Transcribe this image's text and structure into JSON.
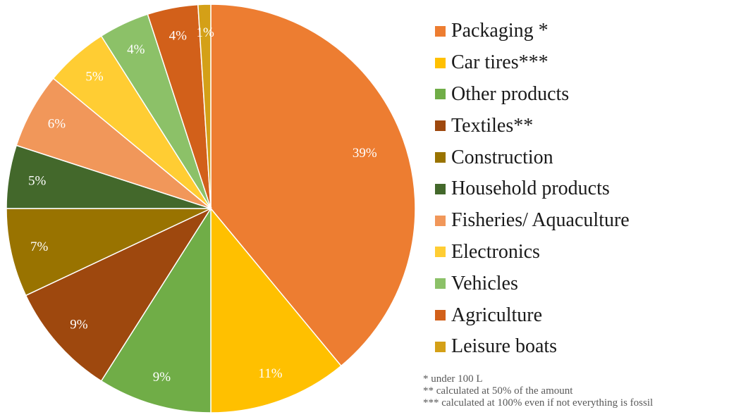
{
  "chart_data": {
    "type": "pie",
    "slices": [
      {
        "label": "Packaging *",
        "value": 39,
        "value_label": "39%",
        "color": "#ED7D31"
      },
      {
        "label": "Car tires***",
        "value": 11,
        "value_label": "11%",
        "color": "#FFC000"
      },
      {
        "label": "Other products",
        "value": 9,
        "value_label": "9%",
        "color": "#70AD47"
      },
      {
        "label": "Textiles**",
        "value": 9,
        "value_label": "9%",
        "color": "#9E480E"
      },
      {
        "label": "Construction",
        "value": 7,
        "value_label": "7%",
        "color": "#997300"
      },
      {
        "label": "Household products",
        "value": 5,
        "value_label": "5%",
        "color": "#43682B"
      },
      {
        "label": "Fisheries/ Aquaculture",
        "value": 6,
        "value_label": "6%",
        "color": "#F1975A"
      },
      {
        "label": "Electronics",
        "value": 5,
        "value_label": "5%",
        "color": "#FFCD33"
      },
      {
        "label": "Vehicles",
        "value": 4,
        "value_label": "4%",
        "color": "#8CC168"
      },
      {
        "label": "Agriculture",
        "value": 4,
        "value_label": "4%",
        "color": "#D2601A"
      },
      {
        "label": "Leisure boats",
        "value": 1,
        "value_label": "1%",
        "color": "#D4A017"
      }
    ],
    "start_angle_deg": 0,
    "direction": "clockwise",
    "legend_position": "right"
  },
  "footnotes": [
    "* under 100 L",
    "** calculated at 50% of the amount",
    "*** calculated at 100% even if not everything is fossil"
  ]
}
